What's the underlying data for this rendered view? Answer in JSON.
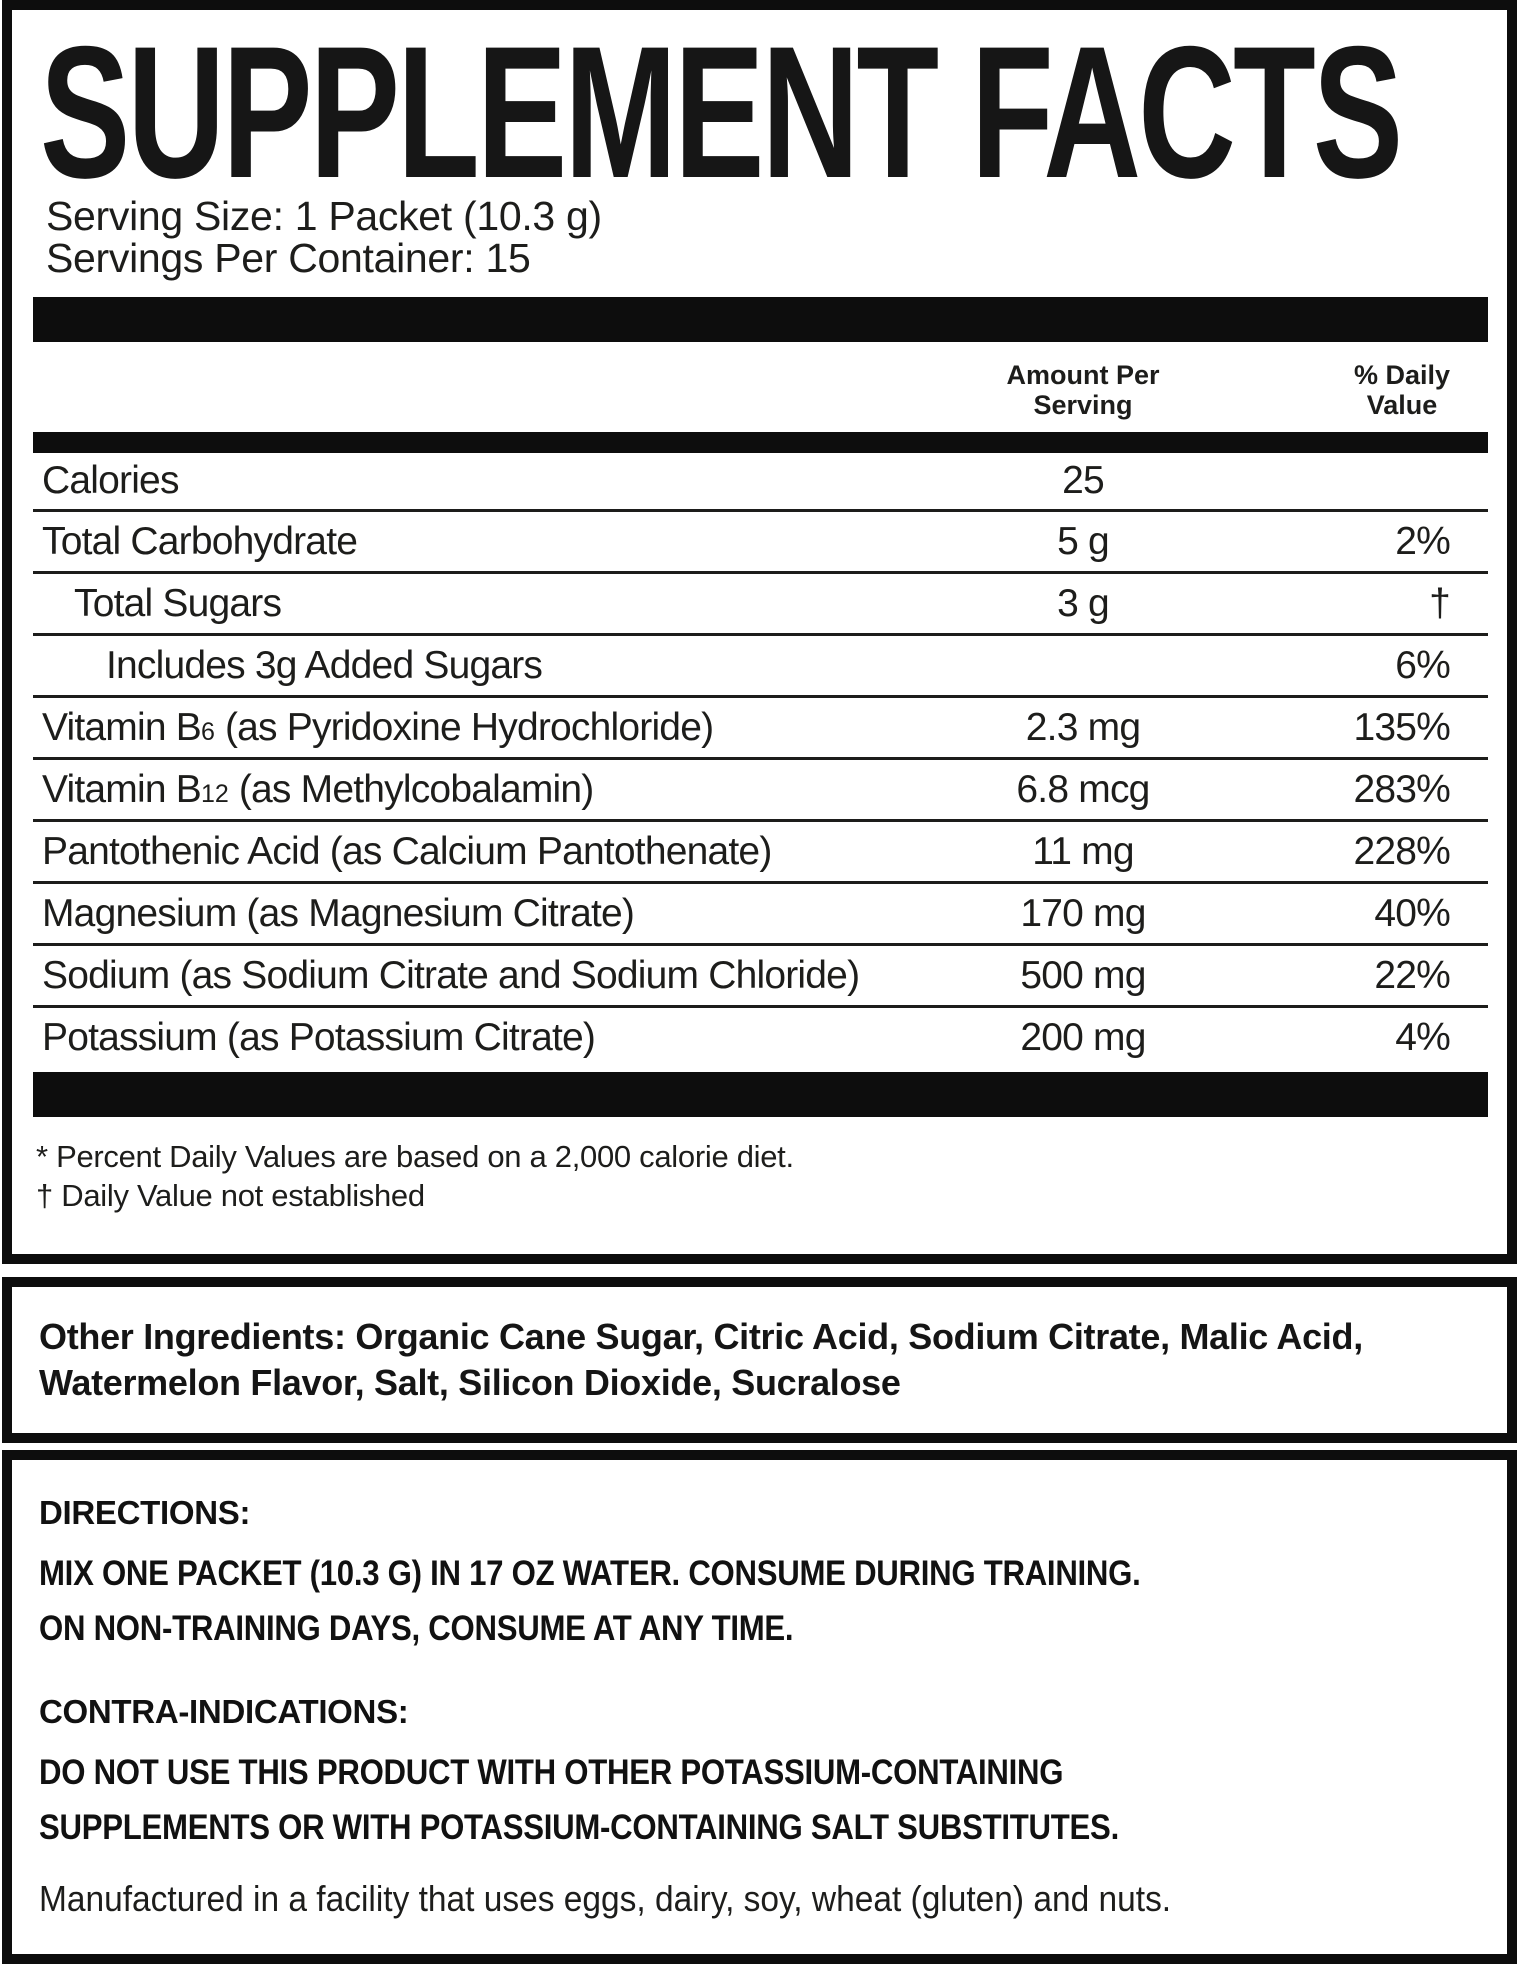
{
  "title": "SUPPLEMENT FACTS",
  "serving": {
    "size": "Serving Size: 1 Packet (10.3 g)",
    "per_container": "Servings Per Container: 15"
  },
  "table": {
    "amount_header": [
      "Amount Per",
      "Serving"
    ],
    "dv_header": [
      "% Daily",
      "Value"
    ],
    "rows": [
      {
        "segments": [
          {
            "t": "Calories"
          }
        ],
        "amount": "25",
        "dv": "",
        "indent": 0
      },
      {
        "segments": [
          {
            "t": "Total Carbohydrate"
          }
        ],
        "amount": "5 g",
        "dv": "2%",
        "indent": 0
      },
      {
        "segments": [
          {
            "t": "Total Sugars"
          }
        ],
        "amount": "3 g",
        "dv": "†",
        "indent": 1
      },
      {
        "segments": [
          {
            "t": "Includes 3g Added Sugars"
          }
        ],
        "amount": "",
        "dv": "6%",
        "indent": 2
      },
      {
        "segments": [
          {
            "t": "Vitamin B"
          },
          {
            "t": "6",
            "sub": true
          },
          {
            "t": " (as Pyridoxine Hydrochloride)"
          }
        ],
        "amount": "2.3 mg",
        "dv": "135%",
        "indent": 0
      },
      {
        "segments": [
          {
            "t": "Vitamin B"
          },
          {
            "t": "12",
            "sub": true
          },
          {
            "t": " (as Methylcobalamin)"
          }
        ],
        "amount": "6.8 mcg",
        "dv": "283%",
        "indent": 0
      },
      {
        "segments": [
          {
            "t": "Pantothenic Acid (as Calcium Pantothenate)"
          }
        ],
        "amount": "11 mg",
        "dv": "228%",
        "indent": 0
      },
      {
        "segments": [
          {
            "t": "Magnesium (as Magnesium Citrate)"
          }
        ],
        "amount": "170 mg",
        "dv": "40%",
        "indent": 0
      },
      {
        "segments": [
          {
            "t": "Sodium (as Sodium Citrate and Sodium Chloride)"
          }
        ],
        "amount": "500 mg",
        "dv": "22%",
        "indent": 0
      },
      {
        "segments": [
          {
            "t": "Potassium (as Potassium Citrate)"
          }
        ],
        "amount": "200 mg",
        "dv": "4%",
        "indent": 0
      }
    ],
    "footnotes": [
      "* Percent Daily Values are based on a 2,000 calorie diet.",
      "† Daily Value not established"
    ]
  },
  "other_ingredients": {
    "lines": [
      "Other Ingredients: Organic Cane Sugar, Citric Acid, Sodium Citrate, Malic Acid,",
      "Watermelon Flavor, Salt, Silicon Dioxide, Sucralose"
    ]
  },
  "directions": {
    "heading": "DIRECTIONS:",
    "lines": [
      "MIX ONE PACKET (10.3 G) IN 17 OZ WATER. CONSUME DURING TRAINING.",
      "ON NON-TRAINING DAYS, CONSUME AT ANY TIME."
    ]
  },
  "contraindications": {
    "heading": "CONTRA-INDICATIONS:",
    "lines": [
      "DO NOT USE THIS PRODUCT WITH OTHER POTASSIUM-CONTAINING",
      "SUPPLEMENTS OR WITH POTASSIUM-CONTAINING SALT SUBSTITUTES."
    ]
  },
  "manufactured": "Manufactured in a facility that uses eggs, dairy, soy, wheat (gluten) and nuts.",
  "colors": {
    "ink": "#1d1d1b",
    "bar": "#0d0d0d",
    "background": "#ffffff"
  }
}
